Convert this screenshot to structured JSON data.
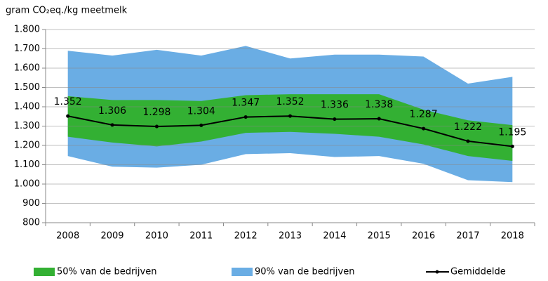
{
  "chart_data": {
    "type": "band-line",
    "y_label": "gram CO₂eq./kg meetmelk",
    "categories": [
      "2008",
      "2009",
      "2010",
      "2011",
      "2012",
      "2013",
      "2014",
      "2015",
      "2016",
      "2017",
      "2018"
    ],
    "bands": [
      {
        "name": "90% van de bedrijven",
        "color": "#6aade4",
        "upper": [
          1690,
          1665,
          1695,
          1665,
          1715,
          1650,
          1670,
          1670,
          1660,
          1520,
          1555
        ],
        "lower": [
          1145,
          1090,
          1085,
          1100,
          1155,
          1160,
          1140,
          1145,
          1105,
          1020,
          1010
        ]
      },
      {
        "name": "50% van de bedrijven",
        "color": "#33b033",
        "upper": [
          1455,
          1435,
          1435,
          1430,
          1460,
          1465,
          1465,
          1465,
          1385,
          1330,
          1305
        ],
        "lower": [
          1245,
          1215,
          1195,
          1220,
          1265,
          1270,
          1260,
          1245,
          1205,
          1145,
          1120
        ]
      }
    ],
    "series": [
      {
        "name": "Gemiddelde",
        "color": "#000000",
        "values": [
          1352,
          1306,
          1298,
          1304,
          1347,
          1352,
          1336,
          1338,
          1287,
          1222,
          1195
        ],
        "value_labels": [
          "1.352",
          "1.306",
          "1.298",
          "1.304",
          "1.347",
          "1.352",
          "1.336",
          "1.338",
          "1.287",
          "1.222",
          "1.195"
        ]
      }
    ],
    "ylim": [
      800,
      1800
    ],
    "yticks": [
      800,
      900,
      {
        "value": 1000,
        "label": "1.000"
      },
      {
        "value": 1100,
        "label": "1.100"
      },
      {
        "value": 1200,
        "label": "1.200"
      },
      {
        "value": 1300,
        "label": "1.300"
      },
      {
        "value": 1400,
        "label": "1.400"
      },
      {
        "value": 1500,
        "label": "1.500"
      },
      {
        "value": 1600,
        "label": "1.600"
      },
      {
        "value": 1700,
        "label": "1.700"
      },
      {
        "value": 1800,
        "label": "1.800"
      }
    ],
    "grid": true
  }
}
